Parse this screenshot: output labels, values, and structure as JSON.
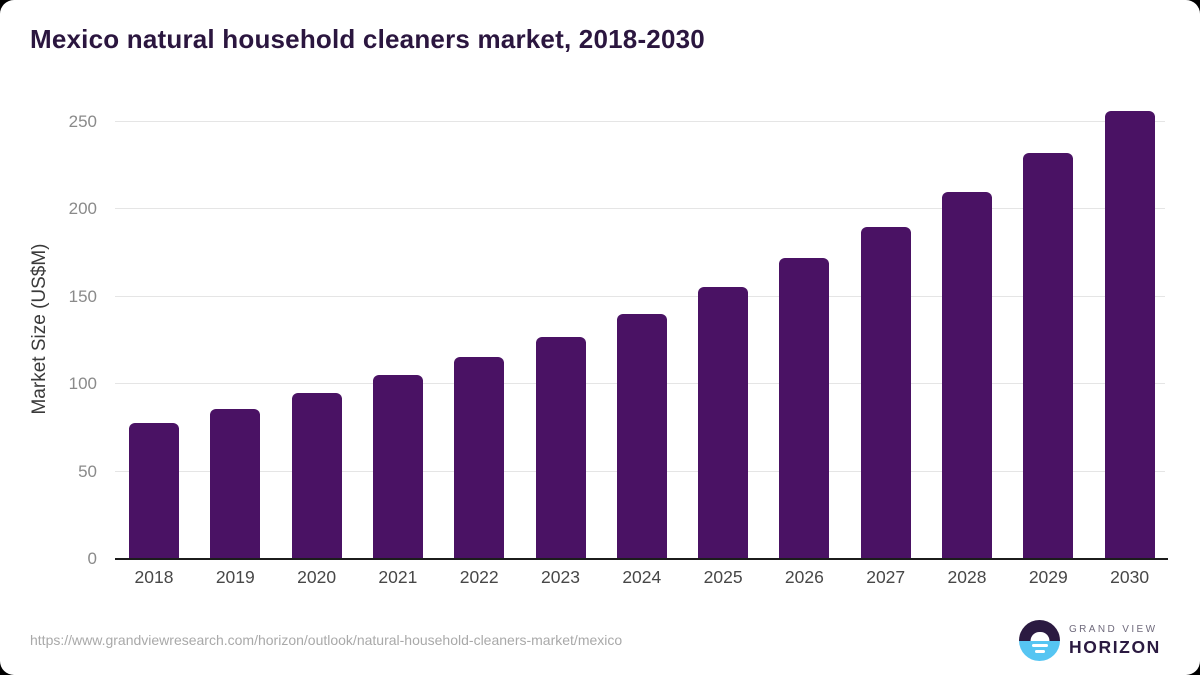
{
  "page": {
    "title": "Mexico natural household cleaners market, 2018-2030",
    "source_url": "https://www.grandviewresearch.com/horizon/outlook/natural-household-cleaners-market/mexico"
  },
  "chart_data": {
    "type": "bar",
    "title": "Mexico natural household cleaners market, 2018-2030",
    "categories": [
      "2018",
      "2019",
      "2020",
      "2021",
      "2022",
      "2023",
      "2024",
      "2025",
      "2026",
      "2027",
      "2028",
      "2029",
      "2030"
    ],
    "values": [
      78,
      86,
      95,
      105,
      115.5,
      127,
      140,
      155.5,
      172,
      190,
      210,
      232,
      256
    ],
    "xlabel": "",
    "ylabel": "Market Size (US$M)",
    "yticks": [
      0,
      50,
      100,
      150,
      200,
      250
    ],
    "ylim": [
      0,
      263
    ],
    "grid": true,
    "legend": false,
    "bar_color": "#4a1264"
  },
  "branding": {
    "logo_line1": "GRAND VIEW",
    "logo_line2": "HORIZON",
    "logo_icon": "horizon-sunset-icon"
  },
  "colors": {
    "title_text": "#2b163f",
    "bar": "#4a1264",
    "gridline": "#e5e5e5",
    "axis_line": "#1c1c1c",
    "y_tick_text": "#8a8a8a",
    "x_tick_text": "#474747",
    "source_text": "#a9a9a9",
    "logo_dark": "#2b1a41",
    "logo_blue": "#56c5f2",
    "page_background": "#ffffff",
    "outer_background": "#000000"
  }
}
